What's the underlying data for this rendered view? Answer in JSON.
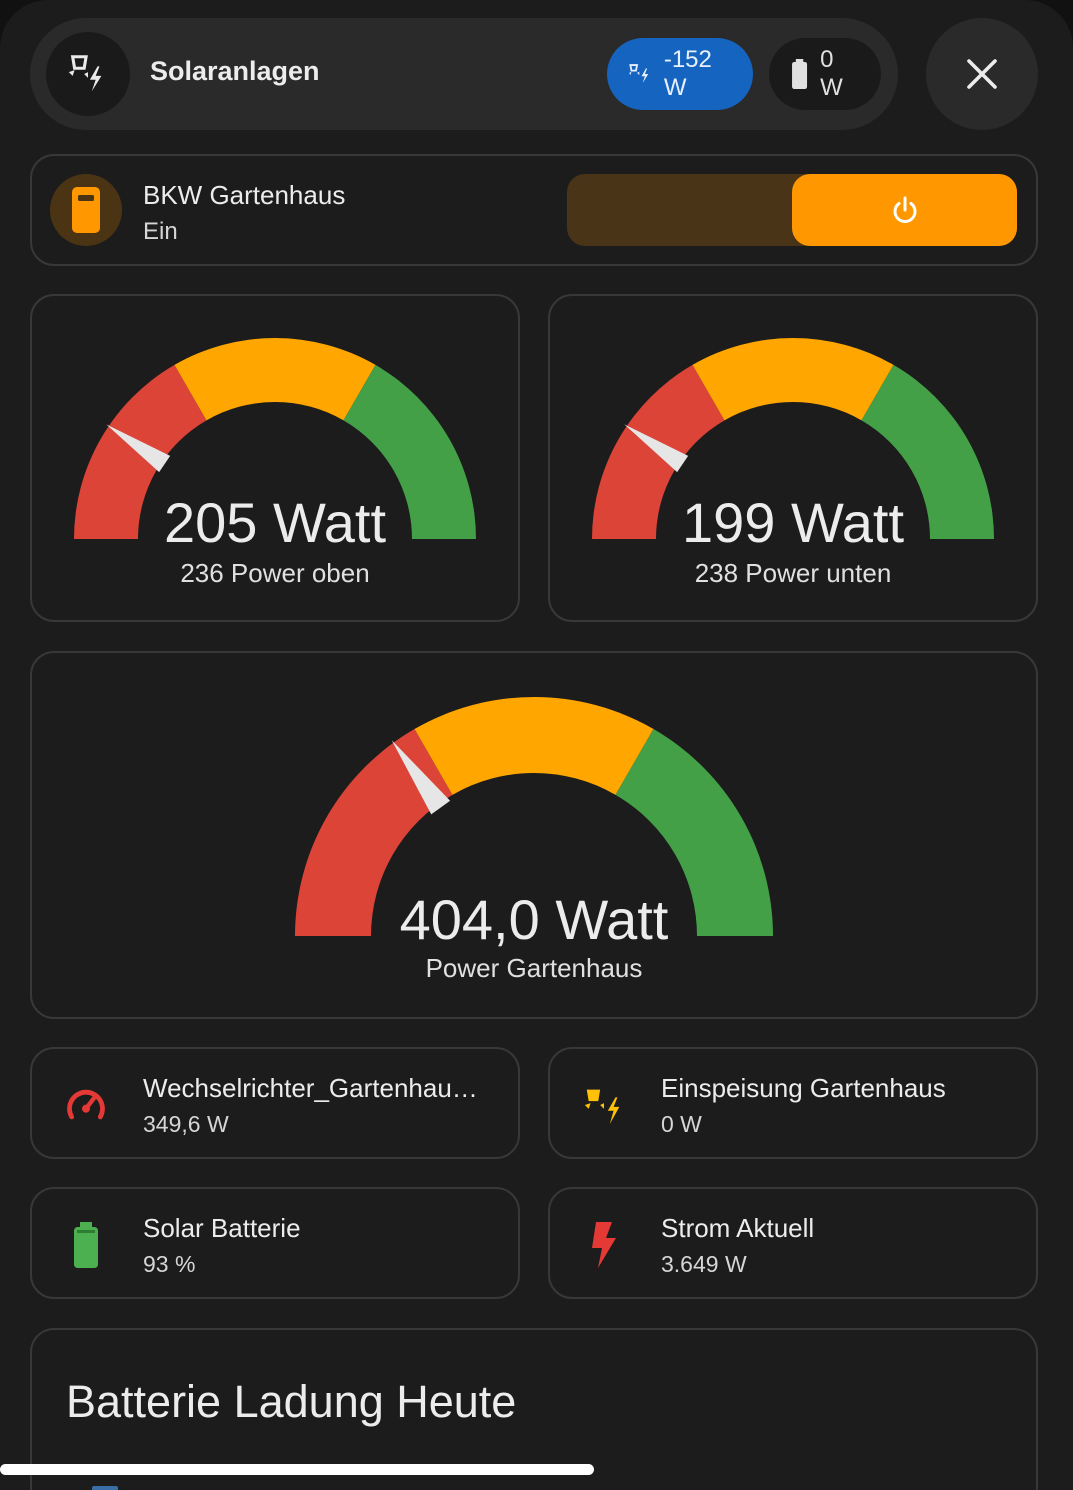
{
  "header": {
    "title": "Solaranlagen",
    "solar_chip": "-152 W",
    "battery_chip": "0 W"
  },
  "switch": {
    "name": "BKW Gartenhaus",
    "state": "Ein"
  },
  "gauges": [
    {
      "value_text": "205 Watt",
      "label": "236 Power oben",
      "needle_fraction": 0.19
    },
    {
      "value_text": "199 Watt",
      "label": "238 Power unten",
      "needle_fraction": 0.19
    },
    {
      "value_text": "404,0 Watt",
      "label": "Power Gartenhaus",
      "needle_fraction": 0.3
    }
  ],
  "tiles": [
    {
      "name": "Wechselrichter_Gartenhau…",
      "value": "349,6 W",
      "icon": "speedometer-icon"
    },
    {
      "name": "Einspeisung Gartenhaus",
      "value": "0 W",
      "icon": "solar-power-icon"
    },
    {
      "name": "Solar Batterie",
      "value": "93 %",
      "icon": "battery-icon"
    },
    {
      "name": "Strom Aktuell",
      "value": "3.649 W",
      "icon": "flash-icon"
    }
  ],
  "chart_section": {
    "title": "Batterie Ladung Heute"
  },
  "colors": {
    "red": "#db4437",
    "orange": "#ffa600",
    "green": "#43a047",
    "accent": "#ff9800",
    "chip_blue": "#1565c0"
  }
}
